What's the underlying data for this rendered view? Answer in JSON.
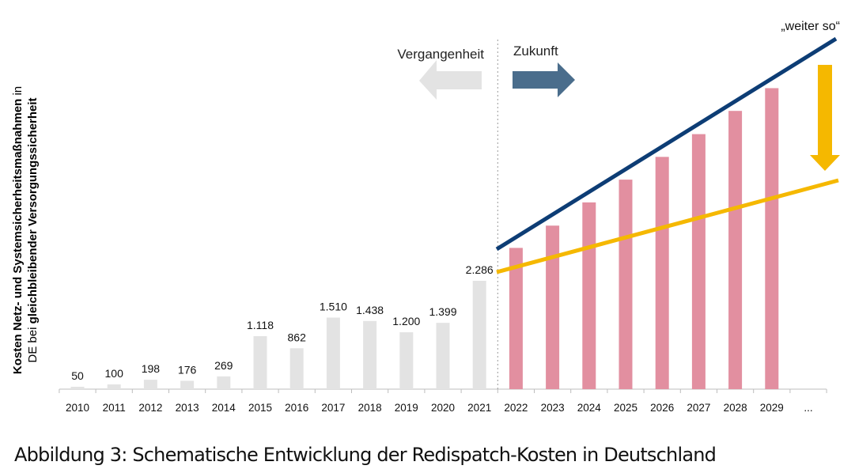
{
  "chart_data": {
    "type": "bar",
    "categories": [
      "2010",
      "2011",
      "2012",
      "2013",
      "2014",
      "2015",
      "2016",
      "2017",
      "2018",
      "2019",
      "2020",
      "2021",
      "2022",
      "2023",
      "2024",
      "2025",
      "2026",
      "2027",
      "2028",
      "2029",
      "..."
    ],
    "past_values": [
      50,
      100,
      198,
      176,
      269,
      1118,
      862,
      1510,
      1438,
      1200,
      1399,
      2286
    ],
    "past_labels": [
      "50",
      "100",
      "198",
      "176",
      "269",
      "1.118",
      "862",
      "1.510",
      "1.438",
      "1.200",
      "1.399",
      "2.286"
    ],
    "future_values": [
      2980,
      3450,
      3940,
      4420,
      4900,
      5380,
      5870,
      6350
    ],
    "ylabel": {
      "bold_part": "Kosten Netz- und Systemsicherheitsmaßnahmen",
      "normal_part": " in",
      "line2_normal": "DE bei ",
      "line2_bold": "gleichbleibender Versorgungssicherheit"
    },
    "period_labels": {
      "past": "Vergangenheit",
      "future": "Zukunft"
    },
    "trend_labels": {
      "weiter_so": "„weiter so“"
    },
    "colors": {
      "past_bar": "#e3e3e3",
      "future_bar": "#e28fa0",
      "trend_blue": "#0d3d75",
      "trend_yellow": "#f5b800",
      "arrow_past": "#e3e3e3",
      "arrow_future": "#4a6d8c",
      "arrow_down": "#f5b800"
    }
  },
  "caption": "Abbildung 3: Schematische Entwicklung der Redispatch-Kosten in Deutschland"
}
